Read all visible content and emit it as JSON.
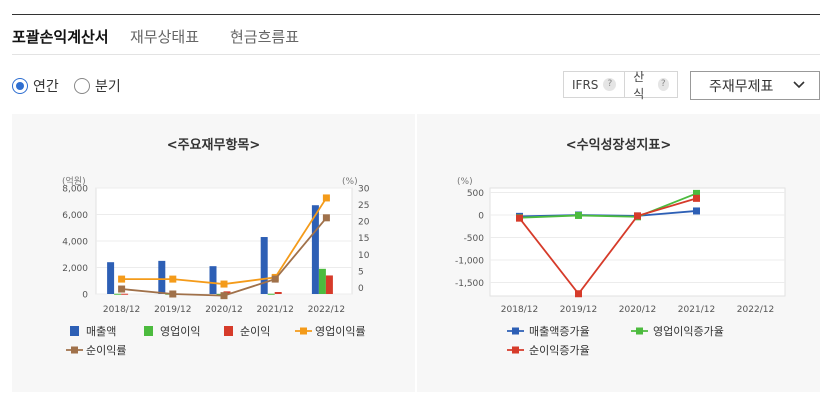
{
  "tabs": [
    "포괄손익계산서",
    "재무상태표",
    "현금흐름표"
  ],
  "period_options": [
    "연간",
    "분기"
  ],
  "selected_period": "연간",
  "toolbar": {
    "ifrs": "IFRS",
    "calc": "산식",
    "help": "?",
    "select_value": "주재무제표"
  },
  "colors": {
    "sales": "#2d5fb5",
    "op_income": "#4cbb3e",
    "net_income": "#d63b2a",
    "op_margin": "#f49b1a",
    "net_margin": "#a0714a",
    "radio_accent": "#2f6fd1"
  },
  "chart_data": [
    {
      "type": "bar",
      "title": "<주요재무항목>",
      "categories": [
        "2018/12",
        "2019/12",
        "2020/12",
        "2021/12",
        "2022/12"
      ],
      "left_axis": {
        "unit": "(억원)",
        "ticks": [
          "8,000",
          "6,000",
          "4,000",
          "2,000",
          "0"
        ],
        "ylim": [
          0,
          8000
        ]
      },
      "right_axis": {
        "unit": "(%)",
        "ticks": [
          "30",
          "25",
          "20",
          "15",
          "10",
          "5",
          "0"
        ],
        "ylim": [
          -2,
          30
        ]
      },
      "series": [
        {
          "name": "매출액",
          "kind": "bar",
          "axis": "left",
          "values": [
            2400,
            2500,
            2100,
            4300,
            6700
          ]
        },
        {
          "name": "영업이익",
          "kind": "bar",
          "axis": "left",
          "values": [
            20,
            20,
            10,
            20,
            1900
          ]
        },
        {
          "name": "순이익",
          "kind": "bar",
          "axis": "left",
          "values": [
            20,
            20,
            200,
            150,
            1400
          ]
        },
        {
          "name": "영업이익률",
          "kind": "line",
          "axis": "right",
          "values": [
            2.5,
            2.5,
            1,
            3,
            27
          ]
        },
        {
          "name": "순이익률",
          "kind": "line",
          "axis": "right",
          "values": [
            -0.5,
            -2,
            -2.5,
            2.5,
            21
          ]
        }
      ],
      "legend": [
        "매출액",
        "영업이익",
        "순이익",
        "영업이익률",
        "순이익률"
      ]
    },
    {
      "type": "line",
      "title": "<수익성장성지표>",
      "categories": [
        "2018/12",
        "2019/12",
        "2020/12",
        "2021/12",
        "2022/12"
      ],
      "left_axis": {
        "unit": "(%)",
        "ticks": [
          "500",
          "0",
          "-500",
          "-1,000",
          "-1,500"
        ],
        "ylim": [
          -1800,
          600
        ]
      },
      "series": [
        {
          "name": "매출액증가율",
          "values": [
            -30,
            0,
            -20,
            90,
            null
          ]
        },
        {
          "name": "영업이익증가율",
          "values": [
            -60,
            -10,
            -40,
            480,
            null
          ]
        },
        {
          "name": "순이익증가율",
          "values": [
            -70,
            -1750,
            -20,
            370,
            null
          ]
        }
      ],
      "legend": [
        "매출액증가율",
        "영업이익증가율",
        "순이익증가율"
      ]
    }
  ]
}
